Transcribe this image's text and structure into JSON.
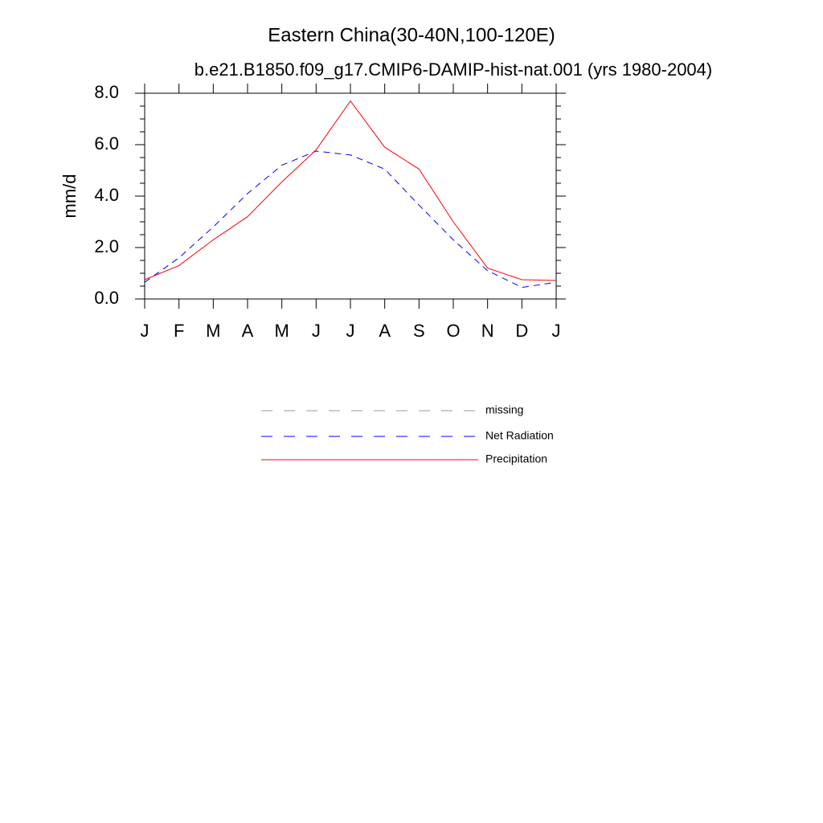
{
  "chart_data": {
    "type": "line",
    "title": "Eastern China(30-40N,100-120E)",
    "subtitle": "b.e21.B1850.f09_g17.CMIP6-DAMIP-hist-nat.001 (yrs 1980-2004)",
    "y_label": "mm/d",
    "categories": [
      "J",
      "F",
      "M",
      "A",
      "M",
      "J",
      "J",
      "A",
      "S",
      "O",
      "N",
      "D",
      "J"
    ],
    "ylim": [
      0,
      8
    ],
    "yticks": [
      {
        "value": 0,
        "label": "0.0"
      },
      {
        "value": 2,
        "label": "2.0"
      },
      {
        "value": 4,
        "label": "4.0"
      },
      {
        "value": 6,
        "label": "6.0"
      },
      {
        "value": 8,
        "label": "8.0"
      }
    ],
    "yminorticks": [
      0.5,
      1,
      1.5,
      2.5,
      3,
      3.5,
      4.5,
      5,
      5.5,
      6.5,
      7,
      7.5
    ],
    "series": [
      {
        "name": "missing",
        "color": "#999999",
        "dashed": true,
        "values": [
          null,
          null,
          null,
          null,
          null,
          null,
          null,
          null,
          null,
          null,
          null,
          null,
          null
        ]
      },
      {
        "name": "Net Radiation",
        "color": "#0000ff",
        "dashed": true,
        "values": [
          0.65,
          1.6,
          2.8,
          4.1,
          5.2,
          5.75,
          5.6,
          5.05,
          3.65,
          2.3,
          1.1,
          0.45,
          0.65
        ]
      },
      {
        "name": "Precipitation",
        "color": "#ff0000",
        "dashed": false,
        "values": [
          0.75,
          1.3,
          2.3,
          3.2,
          4.55,
          5.8,
          7.7,
          5.9,
          5.05,
          3.0,
          1.2,
          0.75,
          0.72
        ]
      }
    ]
  }
}
